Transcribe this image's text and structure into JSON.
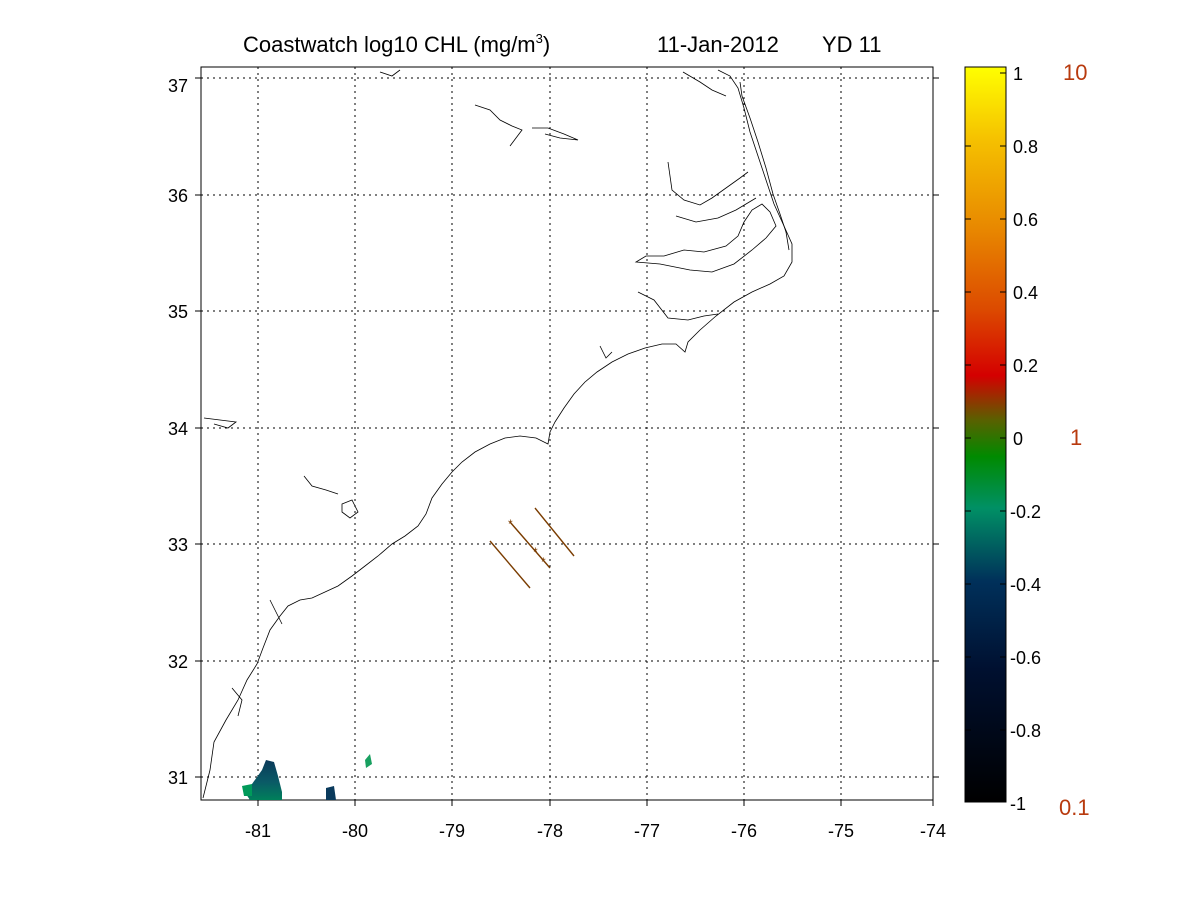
{
  "title": {
    "main": "Coastwatch  log10  CHL (mg/m",
    "sup": "3",
    "close": ")",
    "date": "11-Jan-2012",
    "yd": "YD 11"
  },
  "map": {
    "lon_range": [
      -81.55,
      -74
    ],
    "lat_range": [
      30.8,
      37.1
    ],
    "lon_ticks": [
      "-81",
      "-80",
      "-79",
      "-78",
      "-77",
      "-76",
      "-75",
      "-74"
    ],
    "lat_ticks": [
      "31",
      "32",
      "33",
      "34",
      "35",
      "36",
      "37"
    ],
    "grid": "dotted",
    "colors": {
      "coast": "#000000",
      "track": "#7a3c00"
    }
  },
  "colorbar": {
    "range": [
      -1,
      1
    ],
    "ticks": [
      "1",
      "0.8",
      "0.6",
      "0.4",
      "0.2",
      "0",
      "-0.2",
      "-0.4",
      "-0.6",
      "-0.8",
      "-1"
    ],
    "side_labels": [
      "10",
      "1",
      "0.1"
    ],
    "stops": [
      "#000000",
      "#001a4a",
      "#00994d",
      "#008a00",
      "#7a5000",
      "#d40000",
      "#e05a00",
      "#f2a000",
      "#ffff00"
    ]
  }
}
